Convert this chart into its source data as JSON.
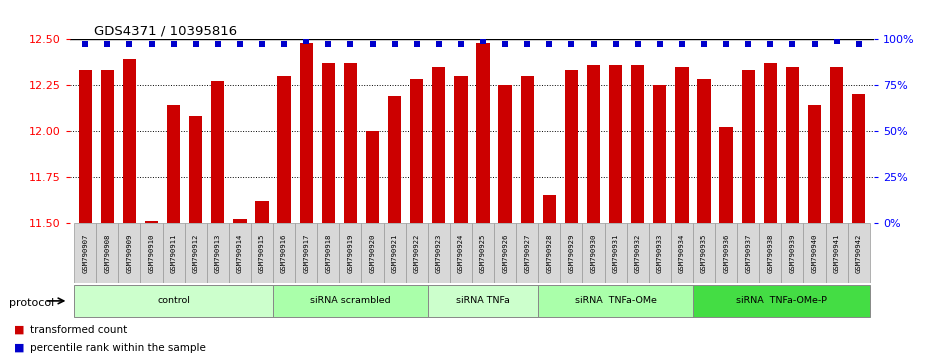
{
  "title": "GDS4371 / 10395816",
  "samples": [
    "GSM790907",
    "GSM790908",
    "GSM790909",
    "GSM790910",
    "GSM790911",
    "GSM790912",
    "GSM790913",
    "GSM790914",
    "GSM790915",
    "GSM790916",
    "GSM790917",
    "GSM790918",
    "GSM790919",
    "GSM790920",
    "GSM790921",
    "GSM790922",
    "GSM790923",
    "GSM790924",
    "GSM790925",
    "GSM790926",
    "GSM790927",
    "GSM790928",
    "GSM790929",
    "GSM790930",
    "GSM790931",
    "GSM790932",
    "GSM790933",
    "GSM790934",
    "GSM790935",
    "GSM790936",
    "GSM790937",
    "GSM790938",
    "GSM790939",
    "GSM790940",
    "GSM790941",
    "GSM790942"
  ],
  "bar_values": [
    12.33,
    12.33,
    12.39,
    11.51,
    12.14,
    12.08,
    12.27,
    11.52,
    11.62,
    12.3,
    12.48,
    12.37,
    12.37,
    12.0,
    12.19,
    12.28,
    12.35,
    12.3,
    12.48,
    12.25,
    12.3,
    11.65,
    12.33,
    12.36,
    12.36,
    12.36,
    12.25,
    12.35,
    12.28,
    12.02,
    12.33,
    12.37,
    12.35,
    12.14,
    12.35,
    12.2
  ],
  "percentile_values": [
    97,
    97,
    97,
    97,
    97,
    97,
    97,
    97,
    97,
    97,
    99,
    97,
    97,
    97,
    97,
    97,
    97,
    97,
    99,
    97,
    97,
    97,
    97,
    97,
    97,
    97,
    97,
    97,
    97,
    97,
    97,
    97,
    97,
    97,
    99,
    97
  ],
  "protocols": [
    {
      "label": "control",
      "start": 0,
      "end": 9,
      "color": "#ccffcc"
    },
    {
      "label": "siRNA scrambled",
      "start": 9,
      "end": 16,
      "color": "#aaffaa"
    },
    {
      "label": "siRNA TNFa",
      "start": 16,
      "end": 21,
      "color": "#ccffcc"
    },
    {
      "label": "siRNA  TNFa-OMe",
      "start": 21,
      "end": 28,
      "color": "#aaffaa"
    },
    {
      "label": "siRNA  TNFa-OMe-P",
      "start": 28,
      "end": 36,
      "color": "#44dd44"
    }
  ],
  "ylim_left": [
    11.5,
    12.5
  ],
  "ylim_right": [
    0,
    100
  ],
  "yticks_left": [
    11.5,
    11.75,
    12.0,
    12.25,
    12.5
  ],
  "yticks_right": [
    0,
    25,
    50,
    75,
    100
  ],
  "bar_color": "#cc0000",
  "percentile_color": "#0000cc",
  "bar_width": 0.6
}
